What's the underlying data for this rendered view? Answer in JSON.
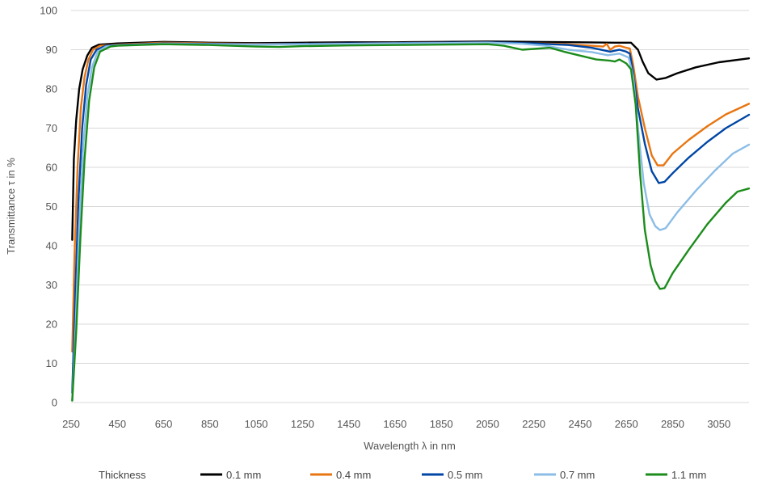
{
  "chart_data": {
    "type": "line",
    "title": "",
    "xlabel": "Wavelength λ in nm",
    "ylabel": "Transmittance τ in %",
    "xlim": [
      250,
      3180
    ],
    "ylim": [
      0,
      100
    ],
    "x_ticks": [
      250,
      450,
      650,
      850,
      1050,
      1250,
      1450,
      1650,
      1850,
      2050,
      2250,
      2450,
      2650,
      2850,
      3050
    ],
    "y_ticks": [
      0,
      10,
      20,
      30,
      40,
      50,
      60,
      70,
      80,
      90,
      100
    ],
    "grid": "horizontal",
    "legend": {
      "title": "Thickness",
      "position": "bottom"
    },
    "series": [
      {
        "name": "0.1 mm",
        "color": "#000000",
        "points": [
          [
            255,
            41.5
          ],
          [
            262,
            62
          ],
          [
            272,
            72
          ],
          [
            285,
            80
          ],
          [
            300,
            85
          ],
          [
            320,
            88.5
          ],
          [
            340,
            90.5
          ],
          [
            370,
            91.3
          ],
          [
            450,
            91.6
          ],
          [
            650,
            92
          ],
          [
            850,
            91.8
          ],
          [
            1050,
            91.7
          ],
          [
            1250,
            91.8
          ],
          [
            1450,
            91.9
          ],
          [
            1650,
            91.9
          ],
          [
            1850,
            92
          ],
          [
            2050,
            92.1
          ],
          [
            2250,
            92
          ],
          [
            2450,
            91.9
          ],
          [
            2600,
            91.8
          ],
          [
            2670,
            91.8
          ],
          [
            2700,
            90
          ],
          [
            2720,
            87
          ],
          [
            2745,
            84
          ],
          [
            2780,
            82.4
          ],
          [
            2820,
            82.8
          ],
          [
            2870,
            84
          ],
          [
            2950,
            85.5
          ],
          [
            3050,
            86.8
          ],
          [
            3180,
            87.8
          ]
        ]
      },
      {
        "name": "0.4 mm",
        "color": "#e87511",
        "points": [
          [
            255,
            13
          ],
          [
            265,
            38
          ],
          [
            278,
            60
          ],
          [
            292,
            75
          ],
          [
            308,
            83
          ],
          [
            325,
            87.5
          ],
          [
            345,
            90
          ],
          [
            375,
            91
          ],
          [
            450,
            91.3
          ],
          [
            650,
            91.8
          ],
          [
            850,
            91.6
          ],
          [
            1050,
            91.5
          ],
          [
            1250,
            91.5
          ],
          [
            1450,
            91.6
          ],
          [
            1650,
            91.7
          ],
          [
            1850,
            91.8
          ],
          [
            2050,
            91.9
          ],
          [
            2150,
            91.7
          ],
          [
            2250,
            91.6
          ],
          [
            2350,
            91.5
          ],
          [
            2450,
            91.2
          ],
          [
            2550,
            90.8
          ],
          [
            2565,
            91.5
          ],
          [
            2580,
            90
          ],
          [
            2600,
            90.8
          ],
          [
            2620,
            91
          ],
          [
            2650,
            90.5
          ],
          [
            2665,
            90.3
          ],
          [
            2680,
            86
          ],
          [
            2700,
            78
          ],
          [
            2730,
            70
          ],
          [
            2760,
            63
          ],
          [
            2785,
            60.5
          ],
          [
            2810,
            60.5
          ],
          [
            2850,
            63.5
          ],
          [
            2920,
            67
          ],
          [
            3000,
            70.5
          ],
          [
            3080,
            73.5
          ],
          [
            3180,
            76.2
          ]
        ]
      },
      {
        "name": "0.5 mm",
        "color": "#0046a5",
        "points": [
          [
            255,
            2.5
          ],
          [
            268,
            28
          ],
          [
            282,
            52
          ],
          [
            298,
            70
          ],
          [
            315,
            81
          ],
          [
            335,
            87.5
          ],
          [
            360,
            90
          ],
          [
            400,
            91
          ],
          [
            450,
            91.2
          ],
          [
            650,
            91.6
          ],
          [
            850,
            91.5
          ],
          [
            1050,
            91.4
          ],
          [
            1250,
            91.5
          ],
          [
            1450,
            91.6
          ],
          [
            1650,
            91.7
          ],
          [
            1850,
            91.8
          ],
          [
            2050,
            91.9
          ],
          [
            2250,
            91.6
          ],
          [
            2400,
            91.2
          ],
          [
            2500,
            90.5
          ],
          [
            2580,
            89.5
          ],
          [
            2620,
            90
          ],
          [
            2650,
            89.5
          ],
          [
            2665,
            89
          ],
          [
            2680,
            84
          ],
          [
            2700,
            75
          ],
          [
            2730,
            66
          ],
          [
            2760,
            59
          ],
          [
            2790,
            56
          ],
          [
            2815,
            56.3
          ],
          [
            2850,
            58.5
          ],
          [
            2920,
            62.5
          ],
          [
            3000,
            66.5
          ],
          [
            3080,
            70
          ],
          [
            3180,
            73.4
          ]
        ]
      },
      {
        "name": "0.7 mm",
        "color": "#8bbde6",
        "points": [
          [
            255,
            0.5
          ],
          [
            270,
            20
          ],
          [
            285,
            45
          ],
          [
            302,
            65
          ],
          [
            320,
            78
          ],
          [
            340,
            85.5
          ],
          [
            365,
            89.5
          ],
          [
            400,
            90.8
          ],
          [
            450,
            91.1
          ],
          [
            650,
            91.5
          ],
          [
            850,
            91.4
          ],
          [
            1050,
            91.3
          ],
          [
            1250,
            91.4
          ],
          [
            1450,
            91.5
          ],
          [
            1650,
            91.6
          ],
          [
            1850,
            91.7
          ],
          [
            2050,
            91.8
          ],
          [
            2200,
            91.5
          ],
          [
            2300,
            91
          ],
          [
            2400,
            90
          ],
          [
            2500,
            89.4
          ],
          [
            2570,
            88.6
          ],
          [
            2620,
            89
          ],
          [
            2660,
            88
          ],
          [
            2680,
            83
          ],
          [
            2700,
            70
          ],
          [
            2725,
            56
          ],
          [
            2750,
            48
          ],
          [
            2775,
            45
          ],
          [
            2795,
            44
          ],
          [
            2820,
            44.5
          ],
          [
            2870,
            48.5
          ],
          [
            2950,
            54
          ],
          [
            3030,
            59
          ],
          [
            3110,
            63.5
          ],
          [
            3180,
            65.8
          ]
        ]
      },
      {
        "name": "1.1 mm",
        "color": "#1b8c1b",
        "points": [
          [
            255,
            0.5
          ],
          [
            272,
            18
          ],
          [
            290,
            42
          ],
          [
            308,
            62
          ],
          [
            328,
            77
          ],
          [
            350,
            85.5
          ],
          [
            375,
            89.5
          ],
          [
            420,
            90.8
          ],
          [
            450,
            91
          ],
          [
            650,
            91.4
          ],
          [
            850,
            91.2
          ],
          [
            900,
            91.1
          ],
          [
            1050,
            90.8
          ],
          [
            1150,
            90.7
          ],
          [
            1250,
            90.9
          ],
          [
            1450,
            91.1
          ],
          [
            1650,
            91.2
          ],
          [
            1850,
            91.3
          ],
          [
            2050,
            91.4
          ],
          [
            2120,
            91
          ],
          [
            2160,
            90.5
          ],
          [
            2200,
            90
          ],
          [
            2250,
            90.2
          ],
          [
            2320,
            90.5
          ],
          [
            2380,
            89.5
          ],
          [
            2450,
            88.5
          ],
          [
            2520,
            87.5
          ],
          [
            2580,
            87.2
          ],
          [
            2600,
            87
          ],
          [
            2620,
            87.5
          ],
          [
            2650,
            86.5
          ],
          [
            2670,
            85
          ],
          [
            2690,
            76
          ],
          [
            2710,
            58
          ],
          [
            2730,
            44
          ],
          [
            2755,
            35
          ],
          [
            2775,
            31
          ],
          [
            2795,
            29
          ],
          [
            2815,
            29.2
          ],
          [
            2850,
            33
          ],
          [
            2920,
            39
          ],
          [
            3000,
            45.5
          ],
          [
            3080,
            51
          ],
          [
            3130,
            53.8
          ],
          [
            3180,
            54.6
          ]
        ]
      }
    ]
  }
}
